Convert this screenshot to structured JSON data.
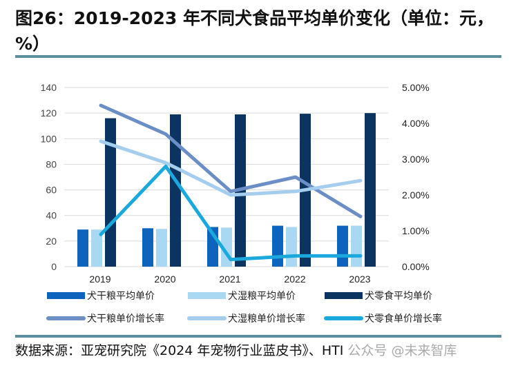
{
  "title": "图26：2019-2023 年不同犬食品平均单价变化（单位：元，%）",
  "source": "数据来源：亚宠研究院《2024 年宠物行业蓝皮书》、HTI",
  "watermark": "公众号 @未来智库",
  "chart_data": {
    "type": "bar+line",
    "categories": [
      "2019",
      "2020",
      "2021",
      "2022",
      "2023"
    ],
    "y_left": {
      "range": [
        0,
        140
      ],
      "ticks": [
        0,
        20,
        40,
        60,
        80,
        100,
        120,
        140
      ]
    },
    "y_right": {
      "range": [
        0,
        5
      ],
      "ticks": [
        "0.00%",
        "1.00%",
        "2.00%",
        "3.00%",
        "4.00%",
        "5.00%"
      ],
      "unit": "%"
    },
    "grid": true,
    "legend_placement": "bottom",
    "bars": [
      {
        "name": "犬干粮平均单价",
        "color": "#0e63bd",
        "values": [
          29,
          30,
          31,
          32,
          32
        ]
      },
      {
        "name": "犬湿粮平均单价",
        "color": "#a9d8f2",
        "values": [
          29,
          29.5,
          30.5,
          31,
          32
        ]
      },
      {
        "name": "犬零食平均单价",
        "color": "#0b3560",
        "values": [
          116,
          119,
          119,
          119.5,
          120
        ]
      }
    ],
    "lines": [
      {
        "name": "犬干粮单价增长率",
        "color": "#6b8ec6",
        "values": [
          4.5,
          3.7,
          2.1,
          2.5,
          1.4
        ]
      },
      {
        "name": "犬湿粮单价增长率",
        "color": "#a4cdee",
        "values": [
          3.5,
          2.9,
          2.0,
          2.1,
          2.4
        ]
      },
      {
        "name": "犬零食单价增长率",
        "color": "#1ba8dc",
        "values": [
          0.9,
          2.8,
          0.2,
          0.3,
          0.3
        ]
      }
    ]
  }
}
